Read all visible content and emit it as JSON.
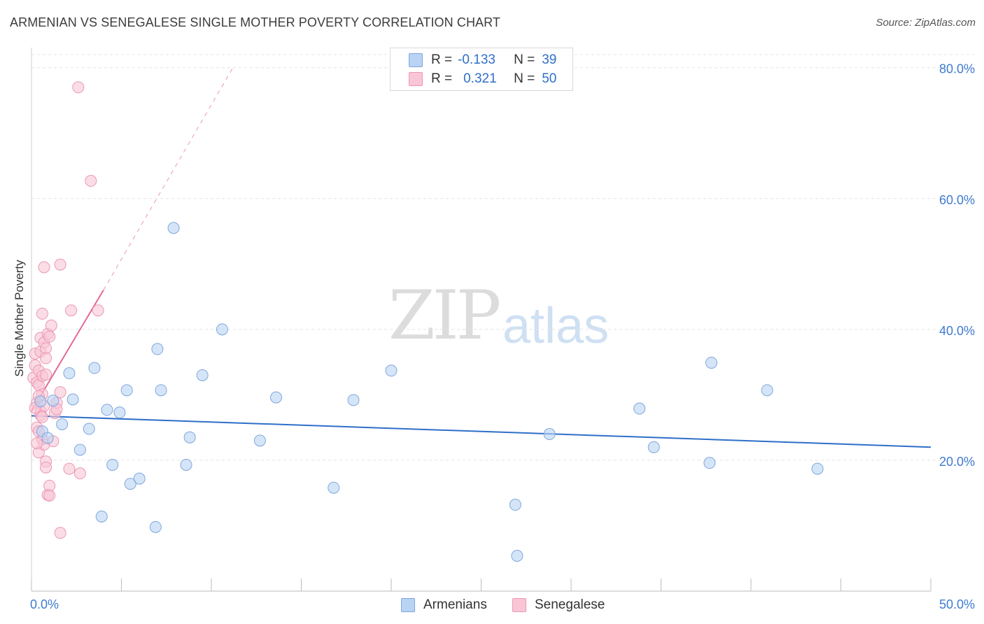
{
  "title": "ARMENIAN VS SENEGALESE SINGLE MOTHER POVERTY CORRELATION CHART",
  "source": "Source: ZipAtlas.com",
  "watermark": {
    "zip": "ZIP",
    "atlas": "atlas"
  },
  "legend": {
    "rows": [
      {
        "r_label": "R =",
        "r_value": "-0.133",
        "n_label": "N =",
        "n_value": "39"
      },
      {
        "r_label": "R =",
        "r_value": "0.321",
        "n_label": "N =",
        "n_value": "50"
      }
    ]
  },
  "bottom_legend": {
    "armenians": "Armenians",
    "senegalese": "Senegalese"
  },
  "colors": {
    "armenian_fill": "#b9d3f4",
    "armenian_stroke": "#7fa6dd",
    "armenian_line": "#2f6fc9",
    "senegalese_fill": "#f9c6d6",
    "senegalese_stroke": "#eb97b3",
    "senegalese_line": "#e2699a",
    "grid": "#e4e4e4",
    "tick_label": "#3f7bd0"
  },
  "chart_data": {
    "type": "scatter",
    "title": "ARMENIAN VS SENEGALESE SINGLE MOTHER POVERTY CORRELATION CHART",
    "xlabel": "",
    "ylabel": "Single Mother Poverty",
    "xlim": [
      0,
      50
    ],
    "ylim": [
      0,
      82
    ],
    "x_tick_labels": [
      "0.0%",
      "50.0%"
    ],
    "y_ticks": [
      20,
      40,
      60,
      80
    ],
    "y_tick_labels": [
      "20.0%",
      "40.0%",
      "60.0%",
      "80.0%"
    ],
    "series": [
      {
        "name": "Armenians",
        "r": -0.133,
        "n": 39,
        "trend": {
          "x": [
            0,
            50
          ],
          "y": [
            26.8,
            22.0
          ]
        },
        "points": [
          [
            0.5,
            29.0
          ],
          [
            0.6,
            24.4
          ],
          [
            0.9,
            23.4
          ],
          [
            1.2,
            29.1
          ],
          [
            1.7,
            25.5
          ],
          [
            2.1,
            33.3
          ],
          [
            2.3,
            29.3
          ],
          [
            2.7,
            21.6
          ],
          [
            3.2,
            24.8
          ],
          [
            3.5,
            34.1
          ],
          [
            3.9,
            11.4
          ],
          [
            4.2,
            27.7
          ],
          [
            4.5,
            19.3
          ],
          [
            4.9,
            27.3
          ],
          [
            5.3,
            30.7
          ],
          [
            5.5,
            16.4
          ],
          [
            6.0,
            17.2
          ],
          [
            6.9,
            9.8
          ],
          [
            7.0,
            37.0
          ],
          [
            7.2,
            30.7
          ],
          [
            7.9,
            55.5
          ],
          [
            8.6,
            19.3
          ],
          [
            8.8,
            23.5
          ],
          [
            9.5,
            33.0
          ],
          [
            10.6,
            40.0
          ],
          [
            12.7,
            23.0
          ],
          [
            13.6,
            29.6
          ],
          [
            16.8,
            15.8
          ],
          [
            17.9,
            29.2
          ],
          [
            20.0,
            33.7
          ],
          [
            26.9,
            13.2
          ],
          [
            27.0,
            5.4
          ],
          [
            28.8,
            24.0
          ],
          [
            33.8,
            27.9
          ],
          [
            34.6,
            22.0
          ],
          [
            37.7,
            19.6
          ],
          [
            37.8,
            34.9
          ],
          [
            40.9,
            30.7
          ],
          [
            43.7,
            18.7
          ]
        ]
      },
      {
        "name": "Senegalese",
        "r": 0.321,
        "n": 50,
        "trend": {
          "x": [
            0,
            4.0
          ],
          "y": [
            27.5,
            46.0
          ]
        },
        "trend_extended": {
          "x": [
            4.0,
            11.2
          ],
          "y": [
            46.0,
            80.0
          ]
        },
        "points": [
          [
            0.1,
            32.6
          ],
          [
            0.2,
            36.3
          ],
          [
            0.2,
            34.5
          ],
          [
            0.3,
            31.9
          ],
          [
            0.3,
            28.8
          ],
          [
            0.3,
            25.0
          ],
          [
            0.4,
            33.7
          ],
          [
            0.4,
            31.5
          ],
          [
            0.4,
            24.4
          ],
          [
            0.4,
            21.2
          ],
          [
            0.5,
            38.7
          ],
          [
            0.5,
            36.6
          ],
          [
            0.5,
            27.5
          ],
          [
            0.5,
            26.9
          ],
          [
            0.6,
            32.9
          ],
          [
            0.6,
            30.1
          ],
          [
            0.6,
            23.2
          ],
          [
            0.6,
            42.4
          ],
          [
            0.7,
            49.5
          ],
          [
            0.7,
            38.0
          ],
          [
            0.7,
            22.4
          ],
          [
            0.7,
            28.3
          ],
          [
            0.8,
            37.1
          ],
          [
            0.8,
            35.6
          ],
          [
            0.8,
            33.1
          ],
          [
            0.8,
            19.8
          ],
          [
            0.8,
            18.9
          ],
          [
            0.9,
            39.3
          ],
          [
            0.9,
            14.7
          ],
          [
            1.0,
            38.9
          ],
          [
            1.0,
            16.1
          ],
          [
            1.0,
            14.6
          ],
          [
            1.1,
            40.6
          ],
          [
            1.2,
            22.9
          ],
          [
            1.3,
            27.2
          ],
          [
            1.4,
            28.8
          ],
          [
            1.4,
            27.8
          ],
          [
            1.6,
            30.4
          ],
          [
            1.6,
            8.9
          ],
          [
            1.6,
            49.9
          ],
          [
            2.1,
            18.7
          ],
          [
            2.2,
            42.9
          ],
          [
            2.6,
            77.0
          ],
          [
            2.7,
            18.0
          ],
          [
            3.3,
            62.7
          ],
          [
            3.7,
            42.9
          ],
          [
            0.2,
            28.0
          ],
          [
            0.3,
            22.6
          ],
          [
            0.6,
            26.6
          ],
          [
            0.4,
            29.8
          ]
        ]
      }
    ]
  }
}
